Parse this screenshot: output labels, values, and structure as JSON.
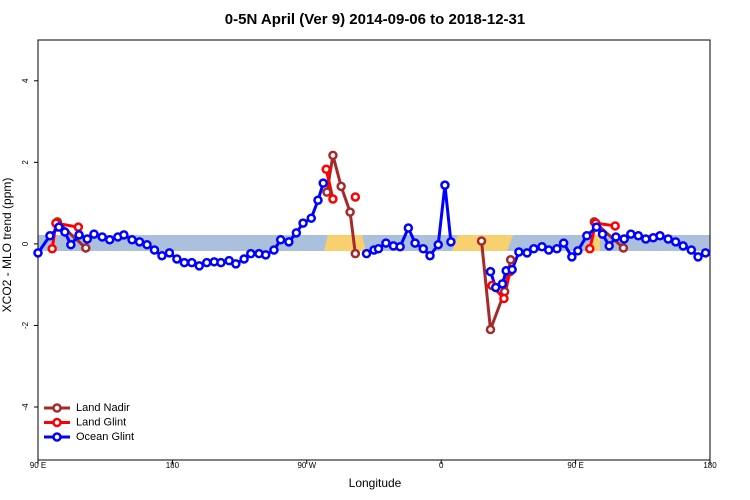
{
  "chart_data": {
    "type": "line",
    "title": "0-5N April (Ver 9)   2014-09-06 to 2018-12-31",
    "x_label": "Longitude",
    "y_label": "XCO2 - MLO trend (ppm)",
    "xlim": [
      90,
      540
    ],
    "ylim": [
      -5.3,
      5
    ],
    "xticks": [
      {
        "value": 90,
        "label": "90 E"
      },
      {
        "value": 180,
        "label": "180"
      },
      {
        "value": 270,
        "label": "90 W"
      },
      {
        "value": 360,
        "label": "0"
      },
      {
        "value": 450,
        "label": "90 E"
      },
      {
        "value": 540,
        "label": "180"
      }
    ],
    "yticks": [
      -4,
      -2,
      0,
      2,
      4
    ],
    "legend": "bottom-left",
    "series": [
      {
        "name": "Land Nadir",
        "color": "#a52a2a",
        "x": [
          103,
          122,
          200,
          283.5,
          287.5,
          293,
          299,
          302.5,
          330,
          387,
          393,
          402.5,
          406.5,
          440,
          462.5,
          482
        ],
        "values": [
          0.54,
          -0.1,
          null,
          1.27,
          2.17,
          1.41,
          0.78,
          -0.24,
          null,
          0.07,
          -2.1,
          -1.17,
          -0.39,
          null,
          0.54,
          -0.1
        ]
      },
      {
        "name": "Land Glint",
        "color": "#ff0000",
        "x": [
          99.5,
          102,
          117,
          200,
          283,
          287.5,
          295,
          302.5,
          350,
          394,
          402,
          406,
          440,
          459.5,
          463.5,
          476.5
        ],
        "values": [
          -0.12,
          0.51,
          0.41,
          null,
          1.83,
          1.1,
          null,
          1.15,
          null,
          -1.02,
          -1.34,
          -0.68,
          null,
          -0.12,
          0.51,
          0.44
        ]
      },
      {
        "name": "Ocean Glint",
        "color": "#0000ff",
        "x": [
          90,
          98,
          104,
          108,
          112,
          117.5,
          123,
          127.5,
          133,
          138,
          143.5,
          147.5,
          153,
          158,
          163,
          168,
          173,
          178,
          183,
          188,
          193,
          198,
          203,
          208,
          212.5,
          218,
          222.5,
          228,
          232.5,
          238,
          242.5,
          248,
          252.5,
          258,
          263,
          267.5,
          273,
          277.5,
          281,
          295,
          310,
          315,
          318,
          323,
          328,
          332.5,
          338,
          342.5,
          348,
          352.5,
          358,
          362.5,
          366.5,
          380,
          393,
          396.5,
          401,
          403.5,
          407.5,
          412,
          417.5,
          422,
          427.5,
          432,
          437.5,
          442,
          447.5,
          451.5,
          457.5,
          464,
          468,
          472.5,
          477,
          482.5,
          487,
          492,
          497,
          502,
          506.5,
          512,
          517,
          522,
          527.5,
          532,
          537
        ],
        "values": [
          -0.22,
          0.2,
          0.41,
          0.29,
          -0.02,
          0.22,
          0.12,
          0.24,
          0.17,
          0.1,
          0.17,
          0.22,
          0.1,
          0.05,
          -0.02,
          -0.15,
          -0.29,
          -0.22,
          -0.37,
          -0.46,
          -0.46,
          -0.54,
          -0.46,
          -0.44,
          -0.46,
          -0.41,
          -0.49,
          -0.37,
          -0.24,
          -0.24,
          -0.27,
          -0.15,
          0.1,
          0.05,
          0.27,
          0.51,
          0.63,
          1.07,
          1.49,
          null,
          -0.24,
          -0.15,
          -0.12,
          0.02,
          -0.05,
          -0.07,
          0.39,
          0.02,
          -0.12,
          -0.29,
          -0.02,
          1.44,
          0.05,
          null,
          -0.68,
          -1.07,
          -0.98,
          -0.66,
          -0.63,
          -0.2,
          -0.22,
          -0.12,
          -0.07,
          -0.15,
          -0.12,
          0.02,
          -0.32,
          -0.17,
          0.2,
          0.41,
          0.24,
          -0.05,
          0.17,
          0.12,
          0.24,
          0.2,
          0.12,
          0.15,
          0.2,
          0.12,
          0.05,
          -0.05,
          -0.15,
          -0.32,
          -0.22
        ]
      }
    ]
  }
}
